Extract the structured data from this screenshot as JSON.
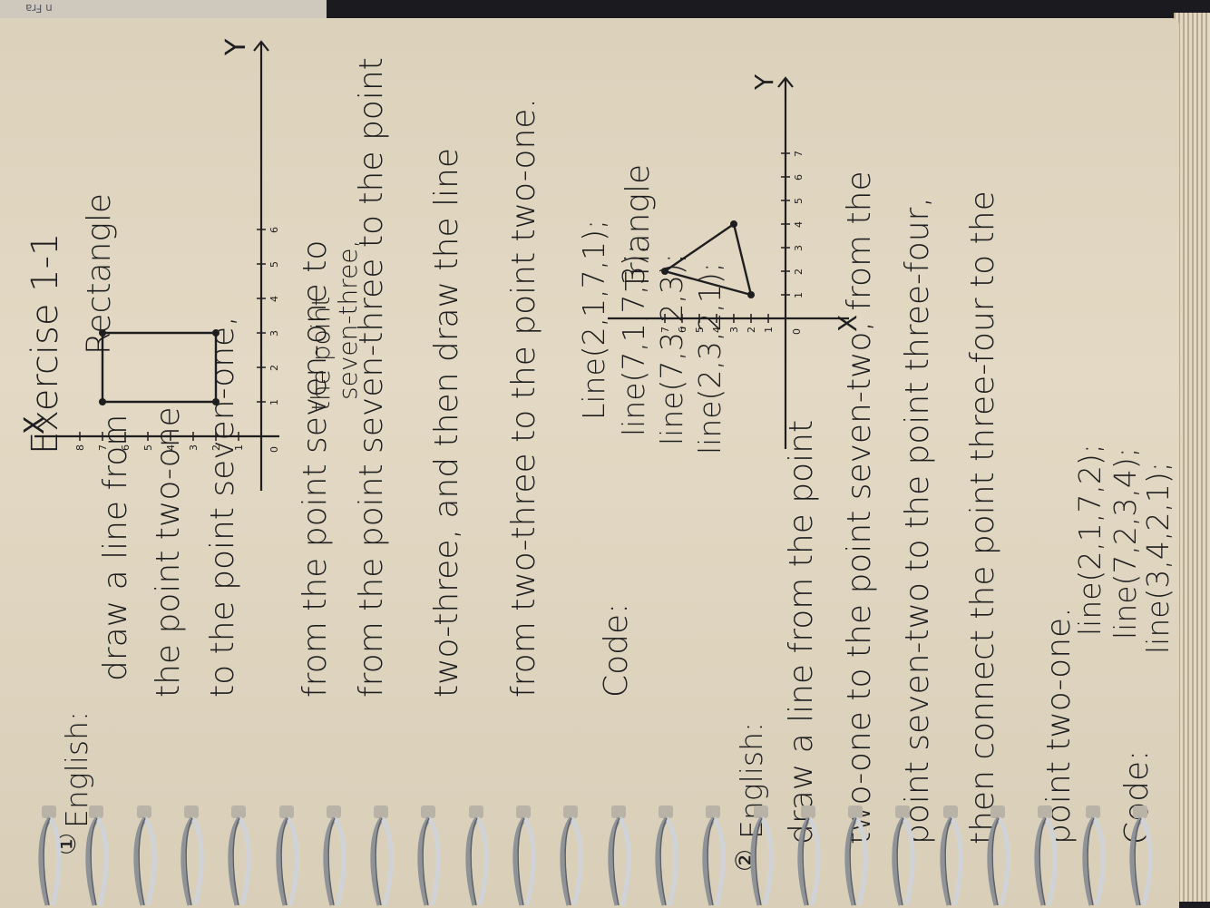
{
  "background_scrap": "n Fra",
  "title": "Exercise 1-1",
  "section1": {
    "marker": "①",
    "lang_label": "English:",
    "lines": [
      "draw a line from",
      "the point two-one",
      "to the point seven-one,",
      "from the point seven-one to",
      "from the point seven-three to the point",
      "two-three, and then draw the line",
      "from two-three to the point two-one."
    ],
    "insert_top": "the point",
    "insert_bottom": "seven-three,",
    "code_label": "Code:",
    "code": [
      "Line(2,1,7,1);",
      "line(7,1,7,3);",
      "line(7,3,2,3);",
      "line(2,3,2,1);"
    ]
  },
  "graph1": {
    "caption": "Rectangle",
    "y_axis_label": "Y",
    "x_axis_label": "X",
    "x_ticks": [
      "1",
      "2",
      "3",
      "4",
      "5",
      "6",
      "7",
      "8"
    ],
    "y_ticks": [
      "1",
      "2",
      "3",
      "4",
      "5",
      "6"
    ],
    "origin": "0",
    "shape": [
      [
        2,
        1
      ],
      [
        7,
        1
      ],
      [
        7,
        3
      ],
      [
        2,
        3
      ]
    ]
  },
  "graph2": {
    "caption": "Triangle",
    "y_axis_label": "Y",
    "x_axis_label": "X",
    "x_ticks": [
      "1",
      "2",
      "3",
      "4",
      "5",
      "6",
      "7"
    ],
    "y_ticks": [
      "1",
      "2",
      "3",
      "4",
      "5",
      "6",
      "7"
    ],
    "origin": "0",
    "shape": [
      [
        2,
        1
      ],
      [
        7,
        2
      ],
      [
        3,
        4
      ]
    ]
  },
  "section2": {
    "marker": "②",
    "lang_label": "English:",
    "lines": [
      "draw a line from the point",
      "two-one to the point seven-two, from the",
      "point seven-two to the point three-four,",
      "then connect the point three-four to the",
      "point two-one."
    ],
    "code_label": "Code:",
    "code": [
      "line(2,1,7,2);",
      "line(7,2,3,4);",
      "line(3,4,2,1);"
    ]
  }
}
